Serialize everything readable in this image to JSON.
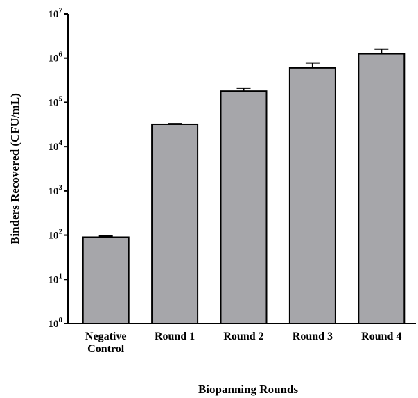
{
  "chart_data": {
    "type": "bar",
    "title": "",
    "xlabel": "Biopanning Rounds",
    "ylabel": "Binders Recovered  (CFU/mL)",
    "yscale": "log",
    "ylim": [
      1,
      10000000
    ],
    "yticks": [
      {
        "value": 1,
        "base": "10",
        "exp": "0"
      },
      {
        "value": 10,
        "base": "10",
        "exp": "1"
      },
      {
        "value": 100,
        "base": "10",
        "exp": "2"
      },
      {
        "value": 1000,
        "base": "10",
        "exp": "3"
      },
      {
        "value": 10000,
        "base": "10",
        "exp": "4"
      },
      {
        "value": 100000,
        "base": "10",
        "exp": "5"
      },
      {
        "value": 1000000,
        "base": "10",
        "exp": "6"
      },
      {
        "value": 10000000,
        "base": "10",
        "exp": "7"
      }
    ],
    "categories": [
      [
        "Negative",
        "Control"
      ],
      [
        "Round 1"
      ],
      [
        "Round 2"
      ],
      [
        "Round 3"
      ],
      [
        "Round 4"
      ]
    ],
    "values": [
      90,
      32000,
      180000,
      600000,
      1250000
    ],
    "error_upper": [
      95,
      33000,
      210000,
      780000,
      1600000
    ],
    "grid": false,
    "colors": {
      "bar_fill": "#a6a6aa",
      "bar_stroke": "#000000",
      "axis": "#000000"
    }
  }
}
